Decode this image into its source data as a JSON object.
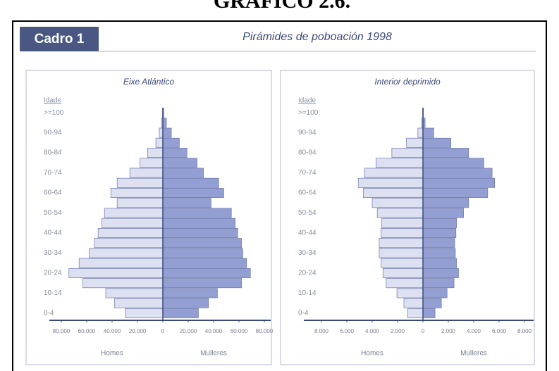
{
  "heading": "GRÁFICO 2.6.",
  "box_label": "Cadro 1",
  "title": "Pirámides de poboación 1998",
  "chart_data": [
    {
      "type": "pyramid",
      "title": "Eixe Atlántico",
      "ylabel": "Idade",
      "categories": [
        "0-4",
        null,
        "10-14",
        null,
        "20-24",
        null,
        "30-34",
        null,
        "40-44",
        null,
        "50-54",
        null,
        "60-64",
        null,
        "70-74",
        null,
        "80-84",
        null,
        "90-94",
        null,
        ">=100"
      ],
      "series": [
        {
          "name": "Homes",
          "color": "#dde0f1",
          "values": [
            29500,
            38000,
            45000,
            63000,
            74000,
            66000,
            58000,
            54000,
            51000,
            48000,
            46000,
            36000,
            41000,
            36000,
            26000,
            18000,
            12000,
            5500,
            2800,
            1000,
            200
          ]
        },
        {
          "name": "Mulleres",
          "color": "#939ed3",
          "values": [
            28000,
            36000,
            43000,
            62000,
            69000,
            66000,
            63000,
            62000,
            59000,
            57000,
            54000,
            38000,
            48000,
            44000,
            32000,
            27000,
            19000,
            13000,
            6700,
            2800,
            700
          ]
        }
      ],
      "xlim": [
        -80000,
        80000
      ],
      "xticks": [
        {
          "value": -80000,
          "label": "80.000"
        },
        {
          "value": -60000,
          "label": "60.000"
        },
        {
          "value": -40000,
          "label": "40.000"
        },
        {
          "value": -20000,
          "label": "20.000"
        },
        0,
        {
          "value": 20000,
          "label": "20.000"
        },
        {
          "value": 40000,
          "label": "40.000"
        },
        {
          "value": 60000,
          "label": "60.000"
        },
        {
          "value": 80000,
          "label": "80.000"
        }
      ]
    },
    {
      "type": "pyramid",
      "title": "Interior deprimido",
      "ylabel": "Idade",
      "categories": [
        "0-4",
        null,
        "10-14",
        null,
        "20-24",
        null,
        "30-34",
        null,
        "40-44",
        null,
        "50-54",
        null,
        "60-64",
        null,
        "70-74",
        null,
        "80-84",
        null,
        "90-94",
        null,
        ">=100"
      ],
      "series": [
        {
          "name": "Homes",
          "color": "#dde0f1",
          "values": [
            1200,
            1500,
            2050,
            2900,
            3150,
            3300,
            3450,
            3450,
            3300,
            3250,
            3600,
            4000,
            4700,
            5100,
            4600,
            3700,
            2450,
            1300,
            400,
            100,
            20
          ]
        },
        {
          "name": "Mulleres",
          "color": "#939ed3",
          "values": [
            950,
            1450,
            1900,
            2450,
            2800,
            2650,
            2550,
            2500,
            2600,
            2650,
            3200,
            3600,
            5100,
            5650,
            5450,
            4800,
            3600,
            2200,
            850,
            170,
            40
          ]
        }
      ],
      "xlim": [
        -8000,
        8000
      ],
      "xticks": [
        {
          "value": -8000,
          "label": "8.000"
        },
        {
          "value": -6000,
          "label": "6.000"
        },
        {
          "value": -4000,
          "label": "4.000"
        },
        {
          "value": -2000,
          "label": "2.000"
        },
        0,
        {
          "value": 2000,
          "label": "2.000"
        },
        {
          "value": 4000,
          "label": "4.000"
        },
        {
          "value": 6000,
          "label": "6.000"
        },
        {
          "value": 8000,
          "label": "8.000"
        }
      ]
    }
  ]
}
